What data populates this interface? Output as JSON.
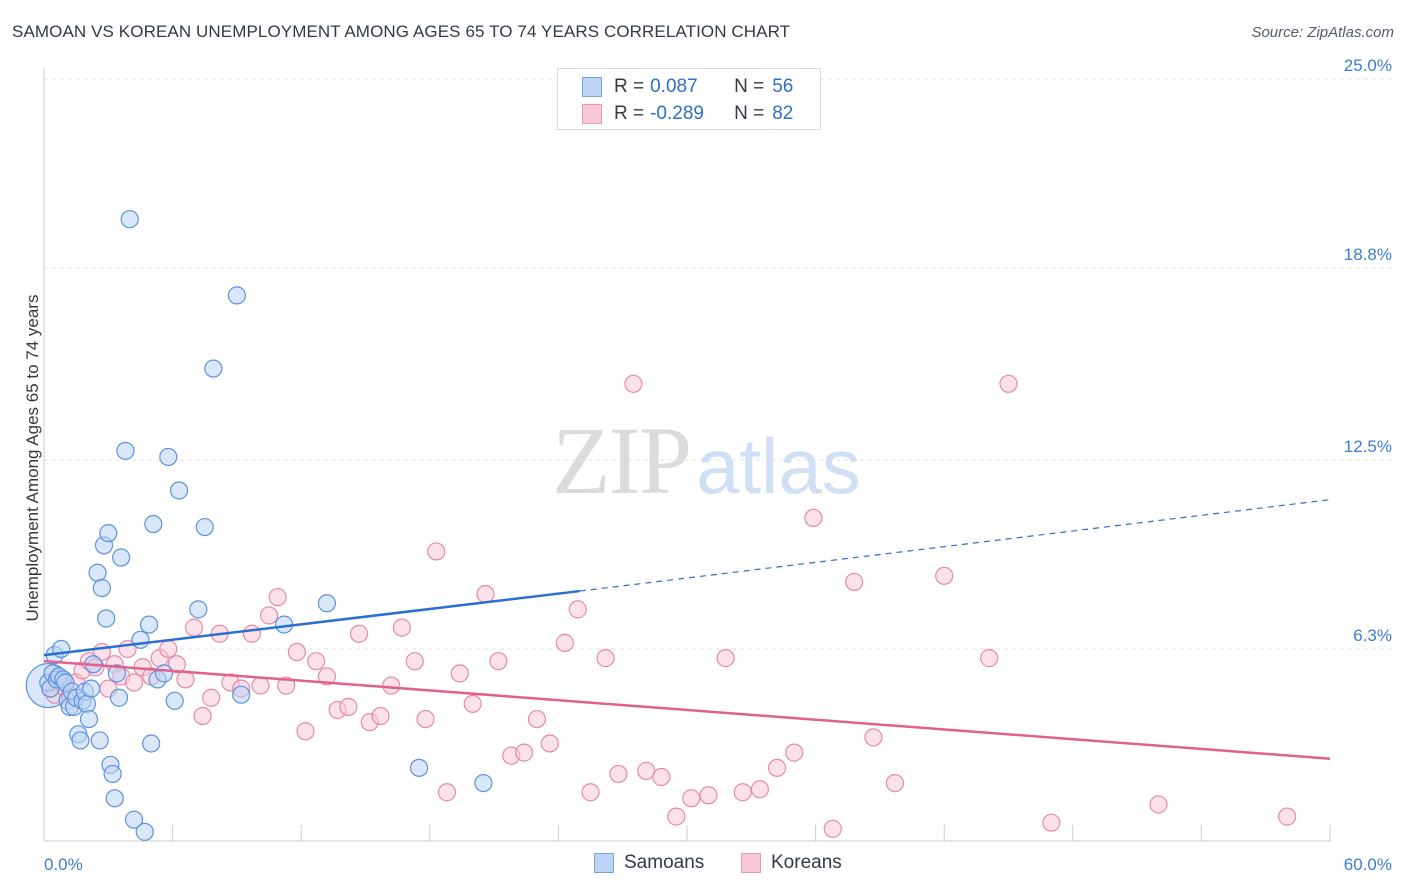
{
  "chart_data": {
    "type": "scatter",
    "title": "SAMOAN VS KOREAN UNEMPLOYMENT AMONG AGES 65 TO 74 YEARS CORRELATION CHART",
    "source": "Source: ZipAtlas.com",
    "xlabel": "",
    "ylabel": "Unemployment Among Ages 65 to 74 years",
    "xlim": [
      0,
      60
    ],
    "ylim": [
      0,
      25
    ],
    "x_tick_labels": [
      "0.0%",
      "60.0%"
    ],
    "y_ticks": [
      6.3,
      12.5,
      18.8,
      25.0
    ],
    "y_tick_labels": [
      "6.3%",
      "12.5%",
      "18.8%",
      "25.0%"
    ],
    "grid": true,
    "watermark": {
      "part1": "ZIP",
      "part2": "atlas"
    },
    "legend_position": "top-center",
    "series": [
      {
        "name": "Samoans",
        "color": "#5b93dc",
        "fill": "#bcd4f4",
        "line_color": "#2b6fcf",
        "R": "0.087",
        "N": "56",
        "trend": {
          "x0": 0,
          "y0": 6.1,
          "x1": 25,
          "y1": 8.2,
          "x_ext": 60,
          "y_ext": 11.2
        },
        "points": [
          [
            0.2,
            5.2
          ],
          [
            0.3,
            5.0
          ],
          [
            0.4,
            5.5
          ],
          [
            0.5,
            6.1
          ],
          [
            0.6,
            5.3
          ],
          [
            0.7,
            5.4
          ],
          [
            0.8,
            6.3
          ],
          [
            0.9,
            5.3
          ],
          [
            1.0,
            5.2
          ],
          [
            1.1,
            4.6
          ],
          [
            1.2,
            4.4
          ],
          [
            1.3,
            4.9
          ],
          [
            1.4,
            4.4
          ],
          [
            1.5,
            4.7
          ],
          [
            1.6,
            3.5
          ],
          [
            1.7,
            3.3
          ],
          [
            1.8,
            4.6
          ],
          [
            1.9,
            4.9
          ],
          [
            2.0,
            4.5
          ],
          [
            2.1,
            4.0
          ],
          [
            2.2,
            5.0
          ],
          [
            2.3,
            5.8
          ],
          [
            2.5,
            8.8
          ],
          [
            2.6,
            3.3
          ],
          [
            2.7,
            8.3
          ],
          [
            2.8,
            9.7
          ],
          [
            2.9,
            7.3
          ],
          [
            3.0,
            10.1
          ],
          [
            3.1,
            2.5
          ],
          [
            3.2,
            2.2
          ],
          [
            3.3,
            1.4
          ],
          [
            3.4,
            5.5
          ],
          [
            3.5,
            4.7
          ],
          [
            3.6,
            9.3
          ],
          [
            3.8,
            12.8
          ],
          [
            4.0,
            20.4
          ],
          [
            4.2,
            0.7
          ],
          [
            4.5,
            6.6
          ],
          [
            4.7,
            0.3
          ],
          [
            4.9,
            7.1
          ],
          [
            5.0,
            3.2
          ],
          [
            5.1,
            10.4
          ],
          [
            5.3,
            5.3
          ],
          [
            5.6,
            5.5
          ],
          [
            5.8,
            12.6
          ],
          [
            6.1,
            4.6
          ],
          [
            6.3,
            11.5
          ],
          [
            7.2,
            7.6
          ],
          [
            7.5,
            10.3
          ],
          [
            7.9,
            15.5
          ],
          [
            9.0,
            17.9
          ],
          [
            9.2,
            4.8
          ],
          [
            11.2,
            7.1
          ],
          [
            13.2,
            7.8
          ],
          [
            17.5,
            2.4
          ],
          [
            20.5,
            1.9
          ]
        ]
      },
      {
        "name": "Koreans",
        "color": "#e58aaa",
        "fill": "#f8c8d8",
        "line_color": "#e0608e",
        "R": "-0.289",
        "N": "82",
        "trend": {
          "x0": 0,
          "y0": 5.9,
          "x1": 60,
          "y1": 2.7
        },
        "points": [
          [
            0.3,
            5.0
          ],
          [
            0.5,
            4.8
          ],
          [
            0.8,
            5.3
          ],
          [
            1.0,
            5.0
          ],
          [
            1.2,
            4.8
          ],
          [
            1.5,
            5.2
          ],
          [
            1.8,
            5.6
          ],
          [
            2.1,
            5.9
          ],
          [
            2.4,
            5.7
          ],
          [
            2.7,
            6.2
          ],
          [
            3.0,
            5.0
          ],
          [
            3.3,
            5.8
          ],
          [
            3.6,
            5.4
          ],
          [
            3.9,
            6.3
          ],
          [
            4.2,
            5.2
          ],
          [
            4.6,
            5.7
          ],
          [
            5.0,
            5.4
          ],
          [
            5.4,
            6.0
          ],
          [
            5.8,
            6.3
          ],
          [
            6.2,
            5.8
          ],
          [
            6.6,
            5.3
          ],
          [
            7.0,
            7.0
          ],
          [
            7.4,
            4.1
          ],
          [
            7.8,
            4.7
          ],
          [
            8.2,
            6.8
          ],
          [
            8.7,
            5.2
          ],
          [
            9.2,
            5.0
          ],
          [
            9.7,
            6.8
          ],
          [
            10.1,
            5.1
          ],
          [
            10.5,
            7.4
          ],
          [
            10.9,
            8.0
          ],
          [
            11.3,
            5.1
          ],
          [
            11.8,
            6.2
          ],
          [
            12.2,
            3.6
          ],
          [
            12.7,
            5.9
          ],
          [
            13.2,
            5.4
          ],
          [
            13.7,
            4.3
          ],
          [
            14.2,
            4.4
          ],
          [
            14.7,
            6.8
          ],
          [
            15.2,
            3.9
          ],
          [
            15.7,
            4.1
          ],
          [
            16.2,
            5.1
          ],
          [
            16.7,
            7.0
          ],
          [
            17.3,
            5.9
          ],
          [
            17.8,
            4.0
          ],
          [
            18.3,
            9.5
          ],
          [
            18.8,
            1.6
          ],
          [
            19.4,
            5.5
          ],
          [
            20.0,
            4.5
          ],
          [
            20.6,
            8.1
          ],
          [
            21.2,
            5.9
          ],
          [
            21.8,
            2.8
          ],
          [
            22.4,
            2.9
          ],
          [
            23.0,
            4.0
          ],
          [
            23.6,
            3.2
          ],
          [
            24.3,
            6.5
          ],
          [
            24.9,
            7.6
          ],
          [
            25.5,
            1.6
          ],
          [
            26.2,
            6.0
          ],
          [
            26.8,
            2.2
          ],
          [
            27.5,
            15.0
          ],
          [
            28.1,
            2.3
          ],
          [
            28.8,
            2.1
          ],
          [
            29.5,
            0.8
          ],
          [
            30.2,
            1.4
          ],
          [
            31.0,
            1.5
          ],
          [
            31.8,
            6.0
          ],
          [
            32.6,
            1.6
          ],
          [
            33.4,
            1.7
          ],
          [
            34.2,
            2.4
          ],
          [
            35.0,
            2.9
          ],
          [
            35.9,
            10.6
          ],
          [
            36.8,
            0.4
          ],
          [
            37.8,
            8.5
          ],
          [
            38.7,
            3.4
          ],
          [
            39.7,
            1.9
          ],
          [
            42.0,
            8.7
          ],
          [
            44.1,
            6.0
          ],
          [
            45.0,
            15.0
          ],
          [
            47.0,
            0.6
          ],
          [
            52.0,
            1.2
          ],
          [
            58.0,
            0.8
          ]
        ]
      }
    ]
  }
}
